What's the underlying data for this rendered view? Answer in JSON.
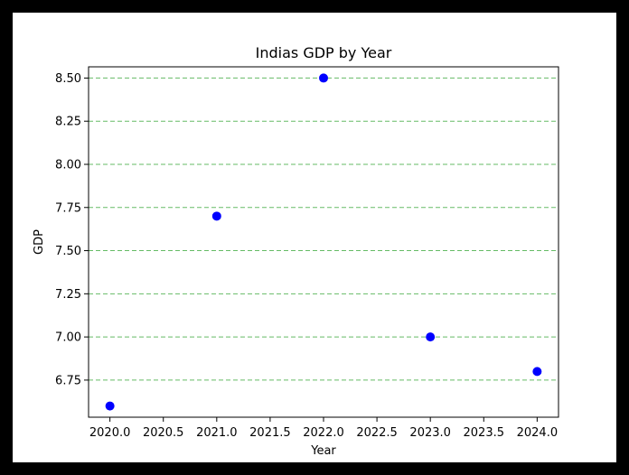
{
  "chart_data": {
    "type": "scatter",
    "title": "Indias GDP by Year",
    "xlabel": "Year",
    "ylabel": "GDP",
    "x": [
      2020,
      2021,
      2022,
      2023,
      2024
    ],
    "y": [
      6.6,
      7.7,
      8.5,
      7.0,
      6.8
    ],
    "xlim": [
      2019.8,
      2024.2
    ],
    "ylim": [
      6.535,
      8.565
    ],
    "xticks": [
      2020.0,
      2020.5,
      2021.0,
      2021.5,
      2022.0,
      2022.5,
      2023.0,
      2023.5,
      2024.0
    ],
    "xtick_labels": [
      "2020.0",
      "2020.5",
      "2021.0",
      "2021.5",
      "2022.0",
      "2022.5",
      "2023.0",
      "2023.5",
      "2024.0"
    ],
    "yticks": [
      6.75,
      7.0,
      7.25,
      7.5,
      7.75,
      8.0,
      8.25,
      8.5
    ],
    "ytick_labels": [
      "6.75",
      "7.00",
      "7.25",
      "7.50",
      "7.75",
      "8.00",
      "8.25",
      "8.50"
    ],
    "grid": "horizontal dashed",
    "colors": {
      "point": "#0000ff",
      "grid": "#66bb66",
      "background": "#ffffff",
      "frame": "#000000"
    }
  }
}
